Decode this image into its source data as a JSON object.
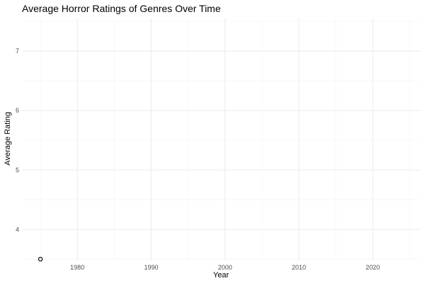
{
  "chart_data": {
    "type": "scatter",
    "title": "Average Horror Ratings of Genres Over Time",
    "xlabel": "Year",
    "ylabel": "Average Rating",
    "xlim": [
      1972.5,
      2026.5
    ],
    "ylim": [
      3.48,
      7.55
    ],
    "x_major_ticks": [
      1980,
      1990,
      2000,
      2010,
      2020
    ],
    "x_minor_gridlines": [
      1975,
      1985,
      1995,
      2005,
      2015,
      2025
    ],
    "y_major_ticks": [
      4,
      5,
      6,
      7
    ],
    "y_minor_gridlines": [
      3.5,
      4.5,
      5.5,
      6.5,
      7.5
    ],
    "grid": true,
    "legend": "none",
    "points": [
      {
        "x": 1975,
        "y": 3.5
      }
    ],
    "colors": {
      "point": "#000000",
      "grid_major": "#ebebeb",
      "grid_minor": "#f3f3f3"
    }
  }
}
